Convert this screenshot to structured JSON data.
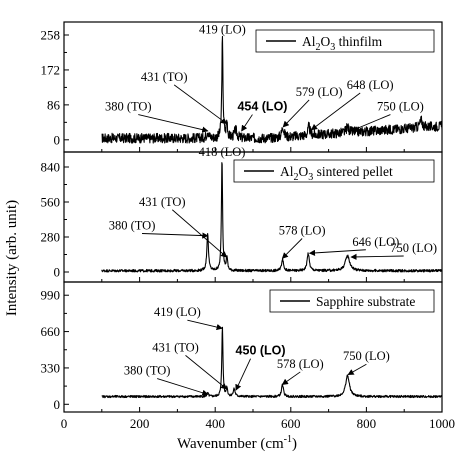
{
  "chart_data": {
    "type": "line",
    "x_range": [
      0,
      1000
    ],
    "x_ticks": [
      0,
      200,
      400,
      600,
      800,
      1000
    ],
    "xlabel": "Wavenumber (cm",
    "xlabel_sup": "-1",
    "xlabel_end": ")",
    "ylabel": "Intensity (arb. unit)",
    "grid": false,
    "panels": [
      {
        "legend": {
          "pre": "Al",
          "sub1": "2",
          "mid": "O",
          "sub2": "3",
          "post": " thinfilm",
          "placement": "top-right"
        },
        "ylim": [
          -30,
          290
        ],
        "y_ticks": [
          0,
          86,
          172,
          258
        ],
        "x_start": 100,
        "x_end": 1000,
        "baseline": 4,
        "noise": 12,
        "ramp": [
          540,
          1000,
          30
        ],
        "peaks": [
          {
            "x": 380,
            "height": 18,
            "width": 3
          },
          {
            "x": 419,
            "height": 246,
            "width": 1.8
          },
          {
            "x": 431,
            "height": 40,
            "width": 2
          },
          {
            "x": 454,
            "height": 20,
            "width": 4
          },
          {
            "x": 579,
            "height": 28,
            "width": 3
          },
          {
            "x": 648,
            "height": 22,
            "width": 3
          },
          {
            "x": 750,
            "height": 14,
            "width": 4
          },
          {
            "x": 945,
            "height": 18,
            "width": 4
          }
        ],
        "annotations": [
          {
            "text": "419 (LO)",
            "x": 419,
            "y": 262,
            "tx": 419,
            "ty": 262,
            "bold": false,
            "arrow": false
          },
          {
            "text": "431 (TO)",
            "x": 430,
            "y": 40,
            "tx": 265,
            "ty": 145,
            "bold": false,
            "arrow": true
          },
          {
            "text": "380 (TO)",
            "x": 380,
            "y": 22,
            "tx": 170,
            "ty": 72,
            "bold": false,
            "arrow": true
          },
          {
            "text": "454 (LO)",
            "x": 470,
            "y": 22,
            "tx": 525,
            "ty": 72,
            "bold": true,
            "arrow": true
          },
          {
            "text": "579 (LO)",
            "x": 580,
            "y": 32,
            "tx": 675,
            "ty": 108,
            "bold": false,
            "arrow": true
          },
          {
            "text": "648 (LO)",
            "x": 655,
            "y": 25,
            "tx": 810,
            "ty": 125,
            "bold": false,
            "arrow": true
          },
          {
            "text": "750 (LO)",
            "x": 760,
            "y": 22,
            "tx": 890,
            "ty": 72,
            "bold": false,
            "arrow": true
          }
        ]
      },
      {
        "legend": {
          "pre": "Al",
          "sub1": "2",
          "mid": "O",
          "sub2": "3",
          "post": " sintered pellet",
          "placement": "top-right"
        },
        "ylim": [
          -80,
          960
        ],
        "y_ticks": [
          0,
          280,
          560,
          840
        ],
        "x_start": 100,
        "x_end": 1000,
        "baseline": 10,
        "noise": 10,
        "ramp": [
          0,
          0,
          0
        ],
        "peaks": [
          {
            "x": 380,
            "height": 300,
            "width": 2.5
          },
          {
            "x": 418,
            "height": 900,
            "width": 1.8
          },
          {
            "x": 431,
            "height": 110,
            "width": 2
          },
          {
            "x": 578,
            "height": 95,
            "width": 3
          },
          {
            "x": 646,
            "height": 140,
            "width": 3.5
          },
          {
            "x": 750,
            "height": 120,
            "width": 7
          }
        ],
        "annotations": [
          {
            "text": "418 (LO)",
            "x": 418,
            "y": 930,
            "tx": 418,
            "ty": 930,
            "bold": false,
            "arrow": false
          },
          {
            "text": "431 (TO)",
            "x": 430,
            "y": 120,
            "tx": 260,
            "ty": 530,
            "bold": false,
            "arrow": true
          },
          {
            "text": "380 (TO)",
            "x": 380,
            "y": 290,
            "tx": 180,
            "ty": 340,
            "bold": false,
            "arrow": true
          },
          {
            "text": "578 (LO)",
            "x": 578,
            "y": 110,
            "tx": 630,
            "ty": 300,
            "bold": false,
            "arrow": true
          },
          {
            "text": "646 (LO)",
            "x": 650,
            "y": 150,
            "tx": 825,
            "ty": 210,
            "bold": false,
            "arrow": true
          },
          {
            "text": "750 (LO)",
            "x": 760,
            "y": 120,
            "tx": 925,
            "ty": 160,
            "bold": false,
            "arrow": true
          }
        ]
      },
      {
        "legend": {
          "pre": "Sapphire substrate",
          "sub1": "",
          "mid": "",
          "sub2": "",
          "post": "",
          "placement": "top-right"
        },
        "ylim": [
          -70,
          1110
        ],
        "y_ticks": [
          0,
          330,
          660,
          990
        ],
        "x_start": 100,
        "x_end": 1000,
        "baseline": 70,
        "noise": 10,
        "ramp": [
          0,
          0,
          0
        ],
        "peaks": [
          {
            "x": 380,
            "height": 30,
            "width": 2.5
          },
          {
            "x": 419,
            "height": 640,
            "width": 1.8
          },
          {
            "x": 431,
            "height": 80,
            "width": 2
          },
          {
            "x": 450,
            "height": 70,
            "width": 3
          },
          {
            "x": 578,
            "height": 110,
            "width": 3
          },
          {
            "x": 750,
            "height": 190,
            "width": 6
          }
        ],
        "annotations": [
          {
            "text": "419 (LO)",
            "x": 418,
            "y": 690,
            "tx": 300,
            "ty": 800,
            "bold": false,
            "arrow": true
          },
          {
            "text": "431 (TO)",
            "x": 430,
            "y": 140,
            "tx": 295,
            "ty": 480,
            "bold": false,
            "arrow": true
          },
          {
            "text": "380 (TO)",
            "x": 380,
            "y": 90,
            "tx": 220,
            "ty": 270,
            "bold": false,
            "arrow": true
          },
          {
            "text": "450 (LO)",
            "x": 455,
            "y": 130,
            "tx": 520,
            "ty": 450,
            "bold": true,
            "arrow": true
          },
          {
            "text": "578 (LO)",
            "x": 578,
            "y": 180,
            "tx": 625,
            "ty": 330,
            "bold": false,
            "arrow": true
          },
          {
            "text": "750 (LO)",
            "x": 752,
            "y": 270,
            "tx": 800,
            "ty": 400,
            "bold": false,
            "arrow": true
          }
        ]
      }
    ]
  }
}
